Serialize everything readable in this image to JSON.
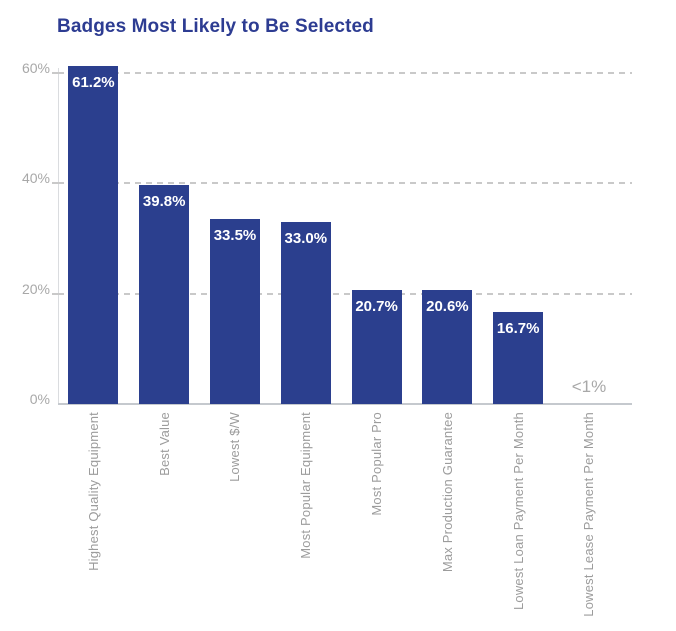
{
  "chart_data": {
    "type": "bar",
    "title": "Badges Most Likely to Be Selected",
    "categories": [
      "Highest Quality Equipment",
      "Best Value",
      "Lowest $/W",
      "Most Popular Equipment",
      "Most Popular Pro",
      "Max Production Guarantee",
      "Lowest Loan Payment Per Month",
      "Lowest Lease Payment Per Month"
    ],
    "values": [
      61.2,
      39.8,
      33.5,
      33.0,
      20.7,
      20.6,
      16.7,
      null
    ],
    "value_labels": [
      "61.2%",
      "39.8%",
      "33.5%",
      "33.0%",
      "20.7%",
      "20.6%",
      "16.7%",
      "<1%"
    ],
    "ylabel": "",
    "xlabel": "",
    "ylim": [
      0,
      62
    ],
    "yticks": [
      {
        "value": 0,
        "label": "0%"
      },
      {
        "value": 20,
        "label": "20%"
      },
      {
        "value": 40,
        "label": "40%"
      },
      {
        "value": 60,
        "label": "60%"
      }
    ],
    "grid": "horizontal dashed at 20, 40, 60",
    "legend_position": "none",
    "colors": {
      "bar": "#2b3f8e",
      "title": "#2d3c92",
      "value_label": "#ffffff",
      "gridline": "#c9c9c9",
      "baseline": "#c5c9ce",
      "axis_line": "#dadcdf",
      "y_tick_text": "#a8a8a8",
      "x_category_text": "#9c9c9c",
      "no_bar_text": "#a8a8a8"
    }
  }
}
